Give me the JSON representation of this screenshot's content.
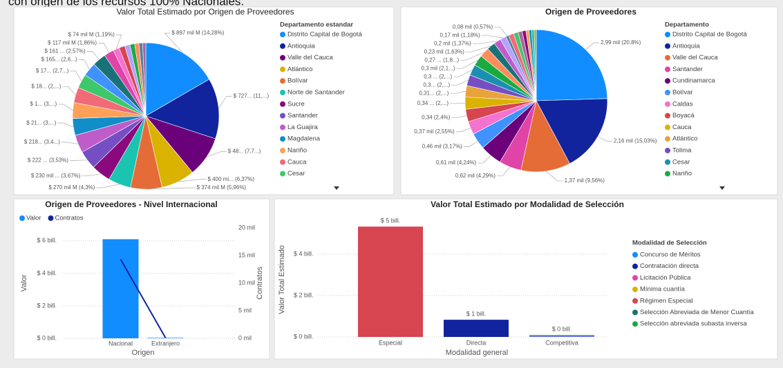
{
  "header_text": "con origen de los recursos 100% Nacionales.",
  "chart_data": [
    {
      "type": "pie",
      "title": "Valor Total Estimado por Origen de Proveedores",
      "legend_title": "Departamento estandar",
      "categories": [
        "Distrito Capital de Bogotá",
        "Antioquia",
        "Valle del Cauca",
        "Atlántico",
        "Bolívar",
        "Norte de Santander",
        "Sucre",
        "Santander",
        "La Guajira",
        "Magdalena",
        "Nariño",
        "Cauca",
        "Cesar",
        null,
        null,
        null,
        null,
        null,
        null,
        null,
        null,
        null,
        null
      ],
      "values": [
        14.28,
        11.5,
        7.7,
        6.37,
        5.96,
        4.3,
        3.67,
        3.53,
        3.4,
        3.2,
        3.0,
        2.9,
        2.7,
        2.6,
        2.57,
        1.86,
        1.19,
        1.1,
        1.0,
        0.9,
        0.8,
        0.7,
        0.6
      ],
      "value_labels": [
        "$ 897 mil M (14,28%)",
        "$ 727... (11,...)",
        "$ 48... (7,7...)",
        "$ 400 mi... (6,37%)",
        "$ 374 mil M (5,96%)",
        "$ 270 mil M (4,3%)",
        "$ 230 mil ... (3,67%)",
        "$ 222 ... (3,53%)",
        "$ 218... (3,4...)",
        "$ 21... (3,...)",
        "$ 1... (3,...)",
        "$ 18... (2,...)",
        "$ 17... (2,7...)",
        "$ 165... (2,6...)",
        "$ 161 ... (2,57%)",
        "$ 117 mil M (1,86%)",
        "$ 74 mil M (1,19%)",
        null,
        null,
        null,
        null,
        null,
        null
      ],
      "colors": [
        "#118DFF",
        "#12239E",
        "#6B007B",
        "#D9B300",
        "#E66C37",
        "#1BC4B0",
        "#8A0A7E",
        "#744EC2",
        "#BE5DC9",
        "#118DC8",
        "#FFA058",
        "#F06A78",
        "#3FC76B",
        "#4092FF",
        "#197278",
        "#E044A7",
        "#F472D0",
        "#D64550",
        "#B5A1FF",
        "#1AAB40",
        "#FF8C5A",
        "#5B7F9E",
        "#A66999"
      ]
    },
    {
      "type": "pie",
      "title": "Origen de Proveedores",
      "legend_title": "Departamento",
      "categories": [
        "Distrito Capital de Bogotá",
        "Antioquia",
        "Valle del Cauca",
        "Santander",
        "Cundinamarca",
        "Bolívar",
        "Caldas",
        "Boyacá",
        "Cauca",
        "Atlántico",
        "Tolima",
        "Cesar",
        "Nariño",
        null,
        null,
        null,
        null,
        null,
        null,
        null,
        null,
        null,
        null,
        null,
        null,
        null
      ],
      "values": [
        20.8,
        15.03,
        9.56,
        4.29,
        4.24,
        3.17,
        2.55,
        2.4,
        2.35,
        2.2,
        2.1,
        2.1,
        2.1,
        1.85,
        1.63,
        1.37,
        1.18,
        0.57,
        1.0,
        0.9,
        0.8,
        0.7,
        0.6,
        0.5,
        0.5,
        0.4
      ],
      "value_labels": [
        "2,99 mil (20,8%)",
        "2,16 mil (15,03%)",
        "1,37 mil (9,56%)",
        "0,62 mil (4,29%)",
        "0,61 mil (4,24%)",
        "0,46 mil (3,17%)",
        "0,37 mil (2,55%)",
        "0,34 (2,4%)",
        "0,34 ... (2,...)",
        "0,31... (2,...)",
        "0,3... (2,...)",
        "0,3 ... (2,...)",
        "0,3 mil (2,1...)",
        "0,27 ... (1,8...)",
        "0,23 mil (1,63%)",
        "0,2 mil (1,37%)",
        "0,17 mil (1,18%)",
        "0,08 mil (0,57%)",
        null,
        null,
        null,
        null,
        null,
        null,
        null,
        null
      ],
      "colors": [
        "#118DFF",
        "#12239E",
        "#E66C37",
        "#E044A7",
        "#6B007B",
        "#4092FF",
        "#F472D0",
        "#D64550",
        "#D9B300",
        "#E8A33D",
        "#744EC2",
        "#1A8FB0",
        "#1AAB40",
        "#FF8C5A",
        "#197278",
        "#BE5DC9",
        "#B5A1FF",
        "#5B7F9E",
        "#F06A78",
        "#3FC76B",
        "#A66999",
        "#8A0A7E",
        "#FFA058",
        "#118DC8",
        "#1BC4B0",
        "#C4A200"
      ]
    },
    {
      "type": "combo",
      "title": "Origen de Proveedores - Nivel Internacional",
      "categories": [
        "Nacional",
        "Extranjero"
      ],
      "series": [
        {
          "name": "Valor",
          "color": "#118DFF",
          "kind": "bar",
          "values": [
            6.1,
            0.03
          ]
        },
        {
          "name": "Contratos",
          "color": "#12239E",
          "kind": "line",
          "axis": "y2",
          "values": [
            14.3,
            0.1
          ]
        }
      ],
      "ylim": [
        0,
        6.8
      ],
      "yticks": [
        {
          "value": 0,
          "label": "$ 0 bill."
        },
        {
          "value": 2,
          "label": "$ 2 bill."
        },
        {
          "value": 4,
          "label": "$ 4 bill."
        },
        {
          "value": 6,
          "label": "$ 6 bill."
        }
      ],
      "y2lim": [
        0,
        20
      ],
      "y2ticks": [
        {
          "value": 0,
          "label": "0 mil"
        },
        {
          "value": 5,
          "label": "5 mil"
        },
        {
          "value": 10,
          "label": "10 mil"
        },
        {
          "value": 15,
          "label": "15 mil"
        },
        {
          "value": 20,
          "label": "20 mil"
        }
      ],
      "ylabel": "Valor",
      "y2label": "Contratos",
      "xlabel": "Origen",
      "grid": true
    },
    {
      "type": "stacked_bar",
      "title": "Valor Total Estimado por Modalidad de Selección",
      "legend_title": "Modalidad de Selección",
      "categories": [
        "Especial",
        "Directa",
        "Competitiva"
      ],
      "series": [
        {
          "name": "Concurso de Méritos",
          "color": "#118DFF",
          "values": [
            0,
            0,
            0.03
          ]
        },
        {
          "name": "Contratación directa",
          "color": "#12239E",
          "values": [
            0,
            0.83,
            0
          ]
        },
        {
          "name": "Licitación Pública",
          "color": "#E044A7",
          "values": [
            0,
            0,
            0.04
          ]
        },
        {
          "name": "Mínima cuantía",
          "color": "#D9B300",
          "values": [
            0,
            0,
            0.01
          ]
        },
        {
          "name": "Régimen Especial",
          "color": "#D64550",
          "values": [
            5.33,
            0,
            0
          ]
        },
        {
          "name": "Selección Abreviada de Menor Cuantía",
          "color": "#197278",
          "values": [
            0,
            0,
            0.01
          ]
        },
        {
          "name": "Selección abreviada subasta inversa",
          "color": "#1AAB40",
          "values": [
            0,
            0,
            0.01
          ]
        }
      ],
      "totals": [
        5.33,
        0.83,
        0.1
      ],
      "total_labels": [
        "$ 5 bill.",
        "$ 1 bill.",
        "$ 0 bill."
      ],
      "ylim": [
        0,
        5.67
      ],
      "yticks": [
        {
          "value": 0,
          "label": "$ 0 bill."
        },
        {
          "value": 2,
          "label": "$ 2 bill."
        },
        {
          "value": 4,
          "label": "$ 4 bill."
        }
      ],
      "ylabel": "Valor Total Estimado",
      "xlabel": "Modalidad general",
      "grid": true
    }
  ]
}
